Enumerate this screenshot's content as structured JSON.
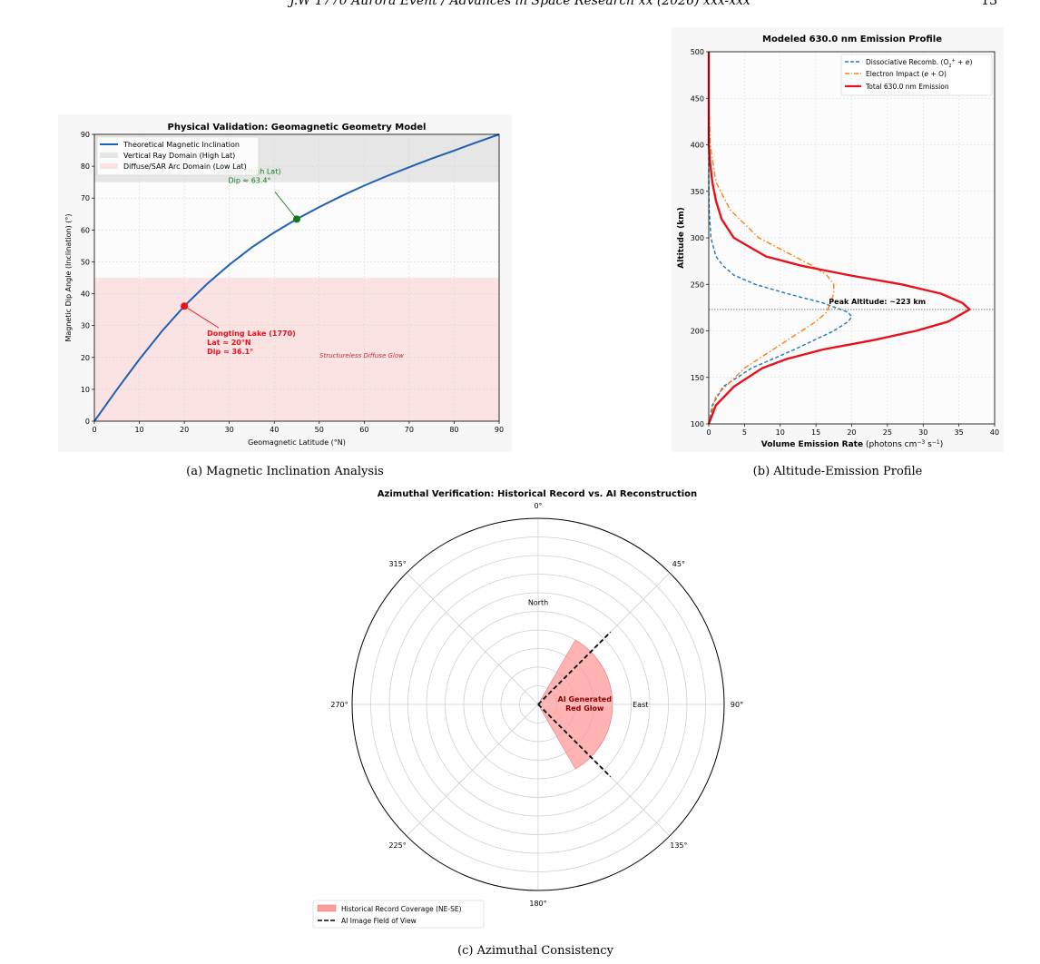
{
  "header": {
    "title": "J.W 1770 Aurora Event / Advances in Space Research xx (2026) xxx-xxx",
    "page": "13"
  },
  "captions": {
    "a": "(a) Magnetic Inclination Analysis",
    "b": "(b) Altitude-Emission Profile",
    "c": "(c) Azimuthal Consistency"
  },
  "chart_data": [
    {
      "id": "a",
      "type": "line",
      "title": "Physical Validation: Geomagnetic Geometry Model",
      "xlabel": "Geomagnetic Latitude (°N)",
      "ylabel": "Magnetic Dip Angle (Inclination) (°)",
      "xlim": [
        0,
        90
      ],
      "ylim": [
        0,
        90
      ],
      "xticks": [
        0,
        10,
        20,
        30,
        40,
        50,
        60,
        70,
        80,
        90
      ],
      "yticks": [
        0,
        10,
        20,
        30,
        40,
        50,
        60,
        70,
        80,
        90
      ],
      "grid": true,
      "legend_position": "upper-left",
      "series": [
        {
          "name": "Theoretical Magnetic Inclination",
          "color": "#1f5fb4",
          "x": [
            0,
            5,
            10,
            15,
            20,
            25,
            30,
            35,
            40,
            45,
            50,
            55,
            60,
            65,
            70,
            75,
            80,
            85,
            90
          ],
          "y": [
            0,
            9.9,
            19.4,
            28.2,
            36.1,
            43.0,
            49.1,
            54.5,
            59.2,
            63.4,
            67.2,
            70.7,
            73.9,
            76.9,
            79.7,
            82.4,
            84.9,
            87.5,
            90
          ]
        }
      ],
      "bands": [
        {
          "name": "Vertical Ray Domain (High Lat)",
          "y0": 75,
          "y1": 90,
          "color": "#e6e6e6"
        },
        {
          "name": "Diffuse/SAR Arc Domain (Low Lat)",
          "y0": 0,
          "y1": 45,
          "color": "#fbe3e3"
        }
      ],
      "points": [
        {
          "x": 45,
          "y": 63.4,
          "color": "#0f7a1e",
          "label_lines": [
            "Aurora (High Lat)",
            "Dip ≈ 63.4°"
          ]
        },
        {
          "x": 20,
          "y": 36.1,
          "color": "#e8111a",
          "label_lines": [
            "Dongting Lake (1770)",
            "Lat ≈ 20°N",
            "Dip ≈ 36.1°"
          ]
        }
      ],
      "annotation": "Structureless Diffuse Glow"
    },
    {
      "id": "b",
      "type": "line",
      "title": "Modeled 630.0 nm Emission Profile",
      "xlabel": "Volume Emission Rate (photons cm⁻³ s⁻¹)",
      "ylabel": "Altitude (km)",
      "xlim": [
        0,
        40
      ],
      "ylim": [
        100,
        500
      ],
      "xticks": [
        0,
        5,
        10,
        15,
        20,
        25,
        30,
        35,
        40
      ],
      "yticks": [
        100,
        150,
        200,
        250,
        300,
        350,
        400,
        450,
        500
      ],
      "grid": true,
      "legend_position": "upper-right",
      "series": [
        {
          "name": "Dissociative Recomb. (O₂⁺ + e)",
          "color": "#1f77b4",
          "style": "dashed",
          "alt": [
            100,
            120,
            140,
            160,
            180,
            200,
            210,
            215,
            220,
            230,
            240,
            250,
            260,
            270,
            280,
            300,
            330,
            360,
            400,
            500
          ],
          "v": [
            0,
            0.5,
            2,
            6,
            12,
            17.5,
            19.5,
            20,
            19.5,
            16,
            11,
            6.5,
            3.5,
            2,
            1,
            0.3,
            0.05,
            0,
            0,
            0
          ]
        },
        {
          "name": "Electron Impact (e + O)",
          "color": "#ff7f0e",
          "style": "dashdot",
          "alt": [
            100,
            130,
            160,
            190,
            210,
            220,
            230,
            240,
            250,
            260,
            270,
            280,
            300,
            330,
            360,
            400,
            450,
            500
          ],
          "v": [
            0,
            1,
            5,
            11,
            15,
            16.5,
            17,
            17.5,
            17.5,
            16.5,
            14.5,
            12,
            7,
            3,
            1,
            0.2,
            0,
            0
          ]
        },
        {
          "name": "Total 630.0 nm Emission",
          "color": "#e8111a",
          "style": "solid",
          "alt": [
            100,
            120,
            140,
            160,
            170,
            180,
            190,
            200,
            210,
            223,
            230,
            240,
            250,
            260,
            270,
            280,
            300,
            320,
            340,
            360,
            380,
            400,
            450,
            500
          ],
          "v": [
            0,
            1,
            3.5,
            7.5,
            11,
            16,
            23,
            29,
            33.5,
            36.5,
            35.5,
            32.5,
            27,
            19.5,
            13,
            8,
            3.5,
            1.8,
            1,
            0.5,
            0.2,
            0,
            0,
            0
          ]
        }
      ],
      "reference_line": {
        "y": 223,
        "label": "Peak Altitude: ~223 km"
      }
    },
    {
      "id": "c",
      "type": "polar",
      "title": "Azimuthal Verification: Historical Record vs. AI Reconstruction",
      "angle_ticks": [
        "0°",
        "45°",
        "90°",
        "135°",
        "180°",
        "225°",
        "270°",
        "315°"
      ],
      "inner_labels": {
        "north": "North",
        "east": "East"
      },
      "wedge": {
        "name": "Historical Record Coverage (NE-SE)",
        "from_deg": 30,
        "to_deg": 150,
        "radius": 0.4,
        "color": "#ff9a9a",
        "label_lines": [
          "AI Generated",
          "Red Glow"
        ]
      },
      "fov_lines": {
        "name": "AI Image Field of View",
        "angles_deg": [
          45,
          135
        ],
        "radius": 0.55
      }
    }
  ]
}
